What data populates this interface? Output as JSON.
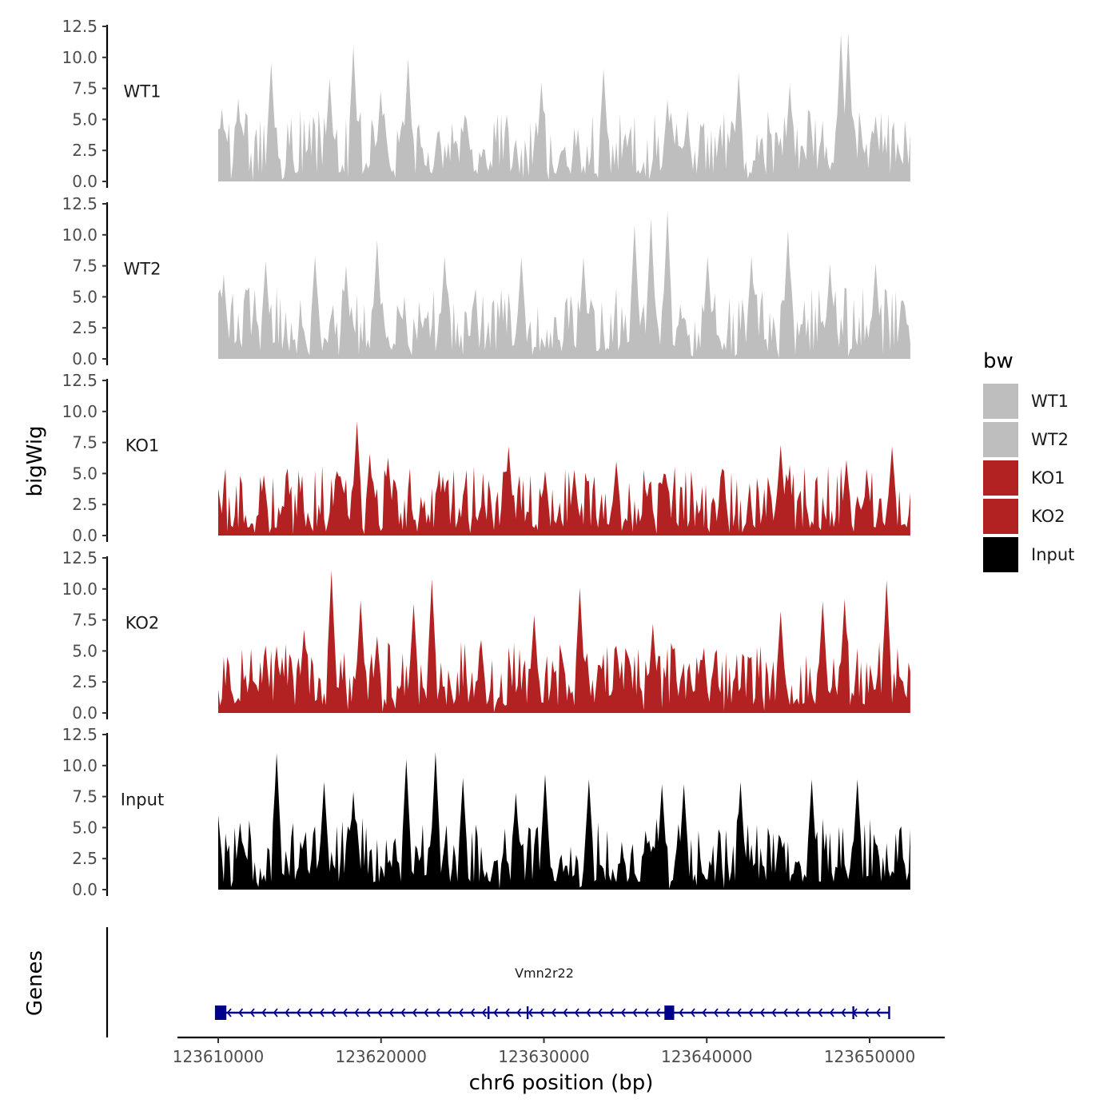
{
  "chart_data": {
    "type": "area",
    "region": {
      "chrom": "chr6",
      "start": 123610000,
      "end": 123652500
    },
    "xlabel": "chr6 position (bp)",
    "ylabel": "bigWig",
    "ylim": [
      0,
      12.5
    ],
    "y_ticks": [
      "0.0",
      "2.5",
      "5.0",
      "7.5",
      "10.0",
      "12.5"
    ],
    "x_ticks": [
      {
        "value": 123610000,
        "label": "123610000"
      },
      {
        "value": 123620000,
        "label": "123620000"
      },
      {
        "value": 123630000,
        "label": "123630000"
      },
      {
        "value": 123640000,
        "label": "123640000"
      },
      {
        "value": 123650000,
        "label": "123650000"
      }
    ],
    "legend": {
      "title": "bw",
      "position": "right"
    },
    "gene_track_label": "Genes",
    "gene": {
      "name": "Vmn2r22",
      "strand": "-",
      "start": 123610000,
      "end": 123651200,
      "exons": [
        [
          123609800,
          123610500
        ],
        [
          123637400,
          123638000
        ]
      ],
      "ticks": [
        123626600,
        123629000,
        123649000,
        123651200
      ]
    },
    "series": [
      {
        "name": "WT1",
        "color": "#BEBEBE",
        "peaks": [
          [
            123610200,
            5.9
          ],
          [
            123611200,
            6.7
          ],
          [
            123613300,
            9.6
          ],
          [
            123616800,
            8.3
          ],
          [
            123618300,
            10.9
          ],
          [
            123620000,
            7.3
          ],
          [
            123621700,
            9.9
          ],
          [
            123625200,
            5.0
          ],
          [
            123629800,
            8.0
          ],
          [
            123633700,
            9.1
          ],
          [
            123637600,
            6.6
          ],
          [
            123642000,
            8.7
          ],
          [
            123645100,
            7.8
          ],
          [
            123648200,
            11.9
          ],
          [
            123648700,
            12.0
          ],
          [
            123650400,
            5.3
          ]
        ]
      },
      {
        "name": "WT2",
        "color": "#BEBEBE",
        "peaks": [
          [
            123610300,
            6.8
          ],
          [
            123612900,
            7.9
          ],
          [
            123615900,
            8.3
          ],
          [
            123617800,
            7.5
          ],
          [
            123619800,
            9.6
          ],
          [
            123623900,
            8.3
          ],
          [
            123628600,
            8.2
          ],
          [
            123632400,
            8.2
          ],
          [
            123635600,
            10.8
          ],
          [
            123636600,
            11.3
          ],
          [
            123637600,
            11.9
          ],
          [
            123640000,
            8.3
          ],
          [
            123642800,
            8.3
          ],
          [
            123645000,
            10.4
          ],
          [
            123647600,
            7.6
          ],
          [
            123650400,
            7.7
          ]
        ]
      },
      {
        "name": "KO1",
        "color": "#B22222",
        "peaks": [
          [
            123610000,
            3.8
          ],
          [
            123612800,
            4.9
          ],
          [
            123617300,
            5.2
          ],
          [
            123618500,
            9.2
          ],
          [
            123619300,
            6.6
          ],
          [
            123620400,
            6.3
          ],
          [
            123623800,
            4.8
          ],
          [
            123627800,
            7.2
          ],
          [
            123630100,
            5.2
          ],
          [
            123631900,
            5.3
          ],
          [
            123634500,
            6.0
          ],
          [
            123637400,
            5.0
          ],
          [
            123641000,
            5.4
          ],
          [
            123644500,
            7.3
          ],
          [
            123648600,
            6.1
          ],
          [
            123651400,
            7.2
          ]
        ]
      },
      {
        "name": "KO2",
        "color": "#B22222",
        "peaks": [
          [
            123612000,
            3.6
          ],
          [
            123615300,
            6.7
          ],
          [
            123617000,
            11.5
          ],
          [
            123618800,
            9.1
          ],
          [
            123619800,
            6.2
          ],
          [
            123622000,
            8.8
          ],
          [
            123623100,
            10.8
          ],
          [
            123626100,
            5.9
          ],
          [
            123629400,
            7.9
          ],
          [
            123632200,
            10.1
          ],
          [
            123636700,
            7.2
          ],
          [
            123640500,
            4.8
          ],
          [
            123644500,
            8.2
          ],
          [
            123647100,
            9.0
          ],
          [
            123648500,
            9.2
          ],
          [
            123651000,
            10.7
          ]
        ]
      },
      {
        "name": "Input",
        "color": "#000000",
        "peaks": [
          [
            123610000,
            6.0
          ],
          [
            123611300,
            5.4
          ],
          [
            123613600,
            11.0
          ],
          [
            123616500,
            8.7
          ],
          [
            123618300,
            7.9
          ],
          [
            123621600,
            10.5
          ],
          [
            123623300,
            11.1
          ],
          [
            123625000,
            9.0
          ],
          [
            123628300,
            7.8
          ],
          [
            123630100,
            9.3
          ],
          [
            123632800,
            8.9
          ],
          [
            123637300,
            8.5
          ],
          [
            123638600,
            8.5
          ],
          [
            123642100,
            8.7
          ],
          [
            123646500,
            8.9
          ],
          [
            123649300,
            8.9
          ]
        ]
      }
    ]
  }
}
